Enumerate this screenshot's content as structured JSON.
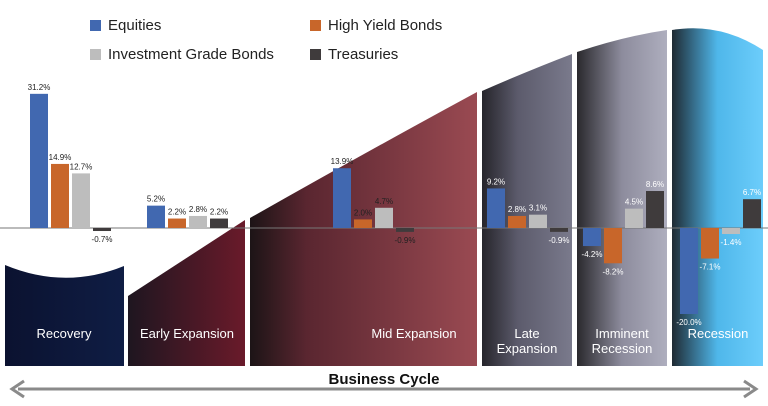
{
  "chart_data": {
    "type": "bar",
    "title": "",
    "xlabel": "Business Cycle",
    "ylabel": "",
    "categories": [
      "Recovery",
      "Early Expansion",
      "Mid Expansion",
      "Late Expansion",
      "Imminent Recession",
      "Recession"
    ],
    "series": [
      {
        "name": "Equities",
        "color": "#4168b0",
        "values": [
          31.2,
          5.2,
          13.9,
          9.2,
          -4.2,
          -20.0
        ],
        "labels": [
          "31.2%",
          "5.2%",
          "13.9%",
          "9.2%",
          "-4.2%",
          "-20.0%"
        ]
      },
      {
        "name": "High Yield Bonds",
        "color": "#c8662a",
        "values": [
          14.9,
          2.2,
          2.0,
          2.8,
          -8.2,
          -7.1
        ],
        "labels": [
          "14.9%",
          "2.2%",
          "2.0%",
          "2.8%",
          "-8.2%",
          "-7.1%"
        ]
      },
      {
        "name": "Investment Grade Bonds",
        "color": "#bdbdbd",
        "values": [
          12.7,
          2.8,
          4.7,
          3.1,
          4.5,
          -1.4
        ],
        "labels": [
          "12.7%",
          "2.8%",
          "4.7%",
          "3.1%",
          "4.5%",
          "-1.4%"
        ]
      },
      {
        "name": "Treasuries",
        "color": "#3f3b3c",
        "values": [
          -0.7,
          2.2,
          -0.9,
          -0.9,
          8.6,
          6.7
        ],
        "labels": [
          "-0.7%",
          "2.2%",
          "-0.9%",
          "-0.9%",
          "8.6%",
          "6.7%"
        ]
      }
    ],
    "panel_labels": [
      [
        "Recovery"
      ],
      [
        "Early Expansion"
      ],
      [
        "Mid Expansion"
      ],
      [
        "Late",
        "Expansion"
      ],
      [
        "Imminent",
        "Recession"
      ],
      [
        "Recession"
      ]
    ],
    "legend_position": "top-left",
    "grid": false
  }
}
